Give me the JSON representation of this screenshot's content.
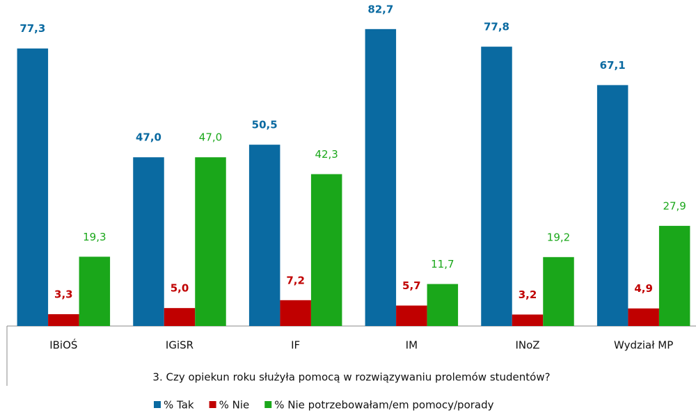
{
  "chart_data": {
    "type": "bar",
    "x_label": "3. Czy opiekun roku służyła pomocą w rozwiązywaniu prolemów studentów?",
    "categories": [
      "IBiOŚ",
      "IGiSR",
      "IF",
      "IM",
      "INoZ",
      "Wydział MP"
    ],
    "series": [
      {
        "name": "% Tak",
        "color": "#0a6aa1",
        "values": [
          77.3,
          47.0,
          50.5,
          82.7,
          77.8,
          67.1
        ],
        "value_labels": [
          "77,3",
          "47,0",
          "50,5",
          "82,7",
          "77,8",
          "67,1"
        ],
        "label_bold": true
      },
      {
        "name": "% Nie",
        "color": "#c00000",
        "values": [
          3.3,
          5.0,
          7.2,
          5.7,
          3.2,
          4.9
        ],
        "value_labels": [
          "3,3",
          "5,0",
          "7,2",
          "5,7",
          "3,2",
          "4,9"
        ],
        "label_bold": true
      },
      {
        "name": "% Nie potrzebowałam/em pomocy/porady",
        "color": "#1aa71a",
        "values": [
          19.3,
          47.0,
          42.3,
          11.7,
          19.2,
          27.9
        ],
        "value_labels": [
          "19,3",
          "47,0",
          "42,3",
          "11,7",
          "19,2",
          "27,9"
        ],
        "label_bold": false
      }
    ],
    "ylim": [
      0,
      90.8
    ],
    "legend": "bottom"
  }
}
